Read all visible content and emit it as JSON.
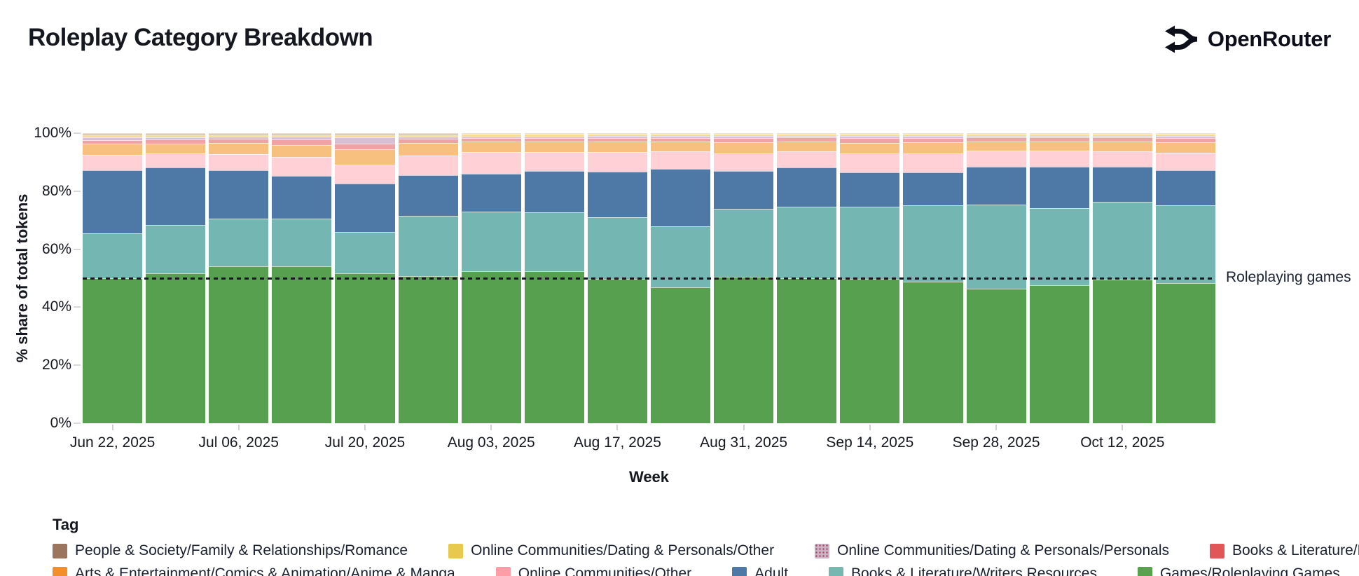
{
  "header": {
    "title": "Roleplay Category Breakdown",
    "brand": "OpenRouter"
  },
  "chart_data": {
    "type": "bar",
    "subtype": "stacked-100-percent",
    "title": "Roleplay Category Breakdown",
    "xlabel": "Week",
    "ylabel": "% share of total tokens",
    "ylim": [
      0,
      100
    ],
    "y_tick_labels": [
      "100%",
      "80%",
      "60%",
      "40%",
      "20%",
      "0%"
    ],
    "y_tick_values": [
      100,
      80,
      60,
      40,
      20,
      0
    ],
    "grid": false,
    "legend_title": "Tag",
    "legend_position": "bottom",
    "legend_rows": [
      [
        8,
        7,
        6,
        5
      ],
      [
        4,
        3,
        2,
        1,
        0
      ]
    ],
    "annotation": {
      "value": 50,
      "label": "Roleplaying games",
      "line_style": "dashed",
      "line_color": "#15181e"
    },
    "series": [
      {
        "name": "Games/Roleplaying Games",
        "swatch": "#59a14f",
        "fill": "#57a050"
      },
      {
        "name": "Books & Literature/Writers Resources",
        "swatch": "#76b7b2",
        "fill": "#74b6b1"
      },
      {
        "name": "Adult",
        "swatch": "#4e79a7",
        "fill": "#4e79a7"
      },
      {
        "name": "Online Communities/Other",
        "swatch": "#ff9da7",
        "fill": "#ffd1d7"
      },
      {
        "name": "Arts & Entertainment/Comics & Animation/Anime & Manga",
        "swatch": "#f28e2b",
        "fill": "#f8c07e"
      },
      {
        "name": "Books & Literature/Fan Fiction",
        "swatch": "#e15759",
        "fill": "#f0a2a4"
      },
      {
        "name": "Online Communities/Dating & Personals/Personals",
        "swatch": "#cbb3c6",
        "fill": "#d8bfd4",
        "pattern": "dotted"
      },
      {
        "name": "Online Communities/Dating & Personals/Other",
        "swatch": "#e8c84d",
        "fill": "#f4dc97"
      },
      {
        "name": "People & Society/Family & Relationships/Romance",
        "swatch": "#9c755f",
        "fill": "#c8ad92"
      }
    ],
    "weeks": [
      {
        "tick": "Jun 22, 2025",
        "values": [
          50.1,
          15.3,
          21.7,
          5.3,
          4.0,
          1.2,
          0.9,
          1.0,
          0.5
        ]
      },
      {
        "tick": "",
        "values": [
          51.7,
          16.6,
          19.8,
          4.8,
          3.5,
          1.4,
          0.8,
          0.9,
          0.5
        ]
      },
      {
        "tick": "Jul 06, 2025",
        "values": [
          54.0,
          16.4,
          16.9,
          5.4,
          3.8,
          1.5,
          0.7,
          0.9,
          0.4
        ]
      },
      {
        "tick": "",
        "values": [
          54.0,
          16.4,
          14.9,
          6.4,
          4.3,
          1.7,
          1.0,
          0.9,
          0.4
        ]
      },
      {
        "tick": "Jul 20, 2025",
        "values": [
          51.6,
          14.3,
          16.6,
          6.6,
          5.4,
          1.8,
          2.3,
          1.0,
          0.4
        ]
      },
      {
        "tick": "",
        "values": [
          50.8,
          20.8,
          14.0,
          6.6,
          4.3,
          1.5,
          0.8,
          0.8,
          0.4
        ]
      },
      {
        "tick": "Aug 03, 2025",
        "values": [
          52.4,
          20.6,
          13.0,
          7.4,
          3.8,
          1.2,
          0.5,
          0.8,
          0.3
        ]
      },
      {
        "tick": "",
        "values": [
          52.4,
          20.4,
          14.1,
          6.5,
          3.6,
          1.3,
          0.6,
          0.8,
          0.3
        ]
      },
      {
        "tick": "Aug 17, 2025",
        "values": [
          49.8,
          21.2,
          15.7,
          6.8,
          3.6,
          1.3,
          0.6,
          0.7,
          0.3
        ]
      },
      {
        "tick": "",
        "values": [
          46.8,
          21.1,
          19.8,
          6.0,
          3.5,
          1.2,
          0.6,
          0.7,
          0.3
        ]
      },
      {
        "tick": "Aug 31, 2025",
        "values": [
          50.4,
          23.4,
          13.1,
          6.2,
          3.7,
          1.5,
          0.7,
          0.7,
          0.3
        ]
      },
      {
        "tick": "",
        "values": [
          50.0,
          24.6,
          13.5,
          5.6,
          3.4,
          1.4,
          0.6,
          0.6,
          0.3
        ]
      },
      {
        "tick": "Sep 14, 2025",
        "values": [
          49.8,
          24.8,
          11.9,
          6.4,
          3.8,
          1.6,
          0.7,
          0.7,
          0.3
        ]
      },
      {
        "tick": "",
        "values": [
          48.8,
          26.2,
          11.5,
          6.5,
          3.8,
          1.6,
          0.7,
          0.6,
          0.3
        ]
      },
      {
        "tick": "Sep 28, 2025",
        "values": [
          46.4,
          29.0,
          13.1,
          5.4,
          3.2,
          1.4,
          0.6,
          0.6,
          0.3
        ]
      },
      {
        "tick": "",
        "values": [
          47.6,
          26.6,
          14.3,
          5.4,
          3.2,
          1.4,
          0.6,
          0.6,
          0.3
        ]
      },
      {
        "tick": "Oct 12, 2025",
        "values": [
          49.6,
          26.6,
          12.3,
          5.2,
          3.4,
          1.4,
          0.6,
          0.6,
          0.3
        ]
      },
      {
        "tick": "",
        "values": [
          48.4,
          26.6,
          12.3,
          6.0,
          3.6,
          1.4,
          0.8,
          0.6,
          0.3
        ]
      }
    ]
  }
}
